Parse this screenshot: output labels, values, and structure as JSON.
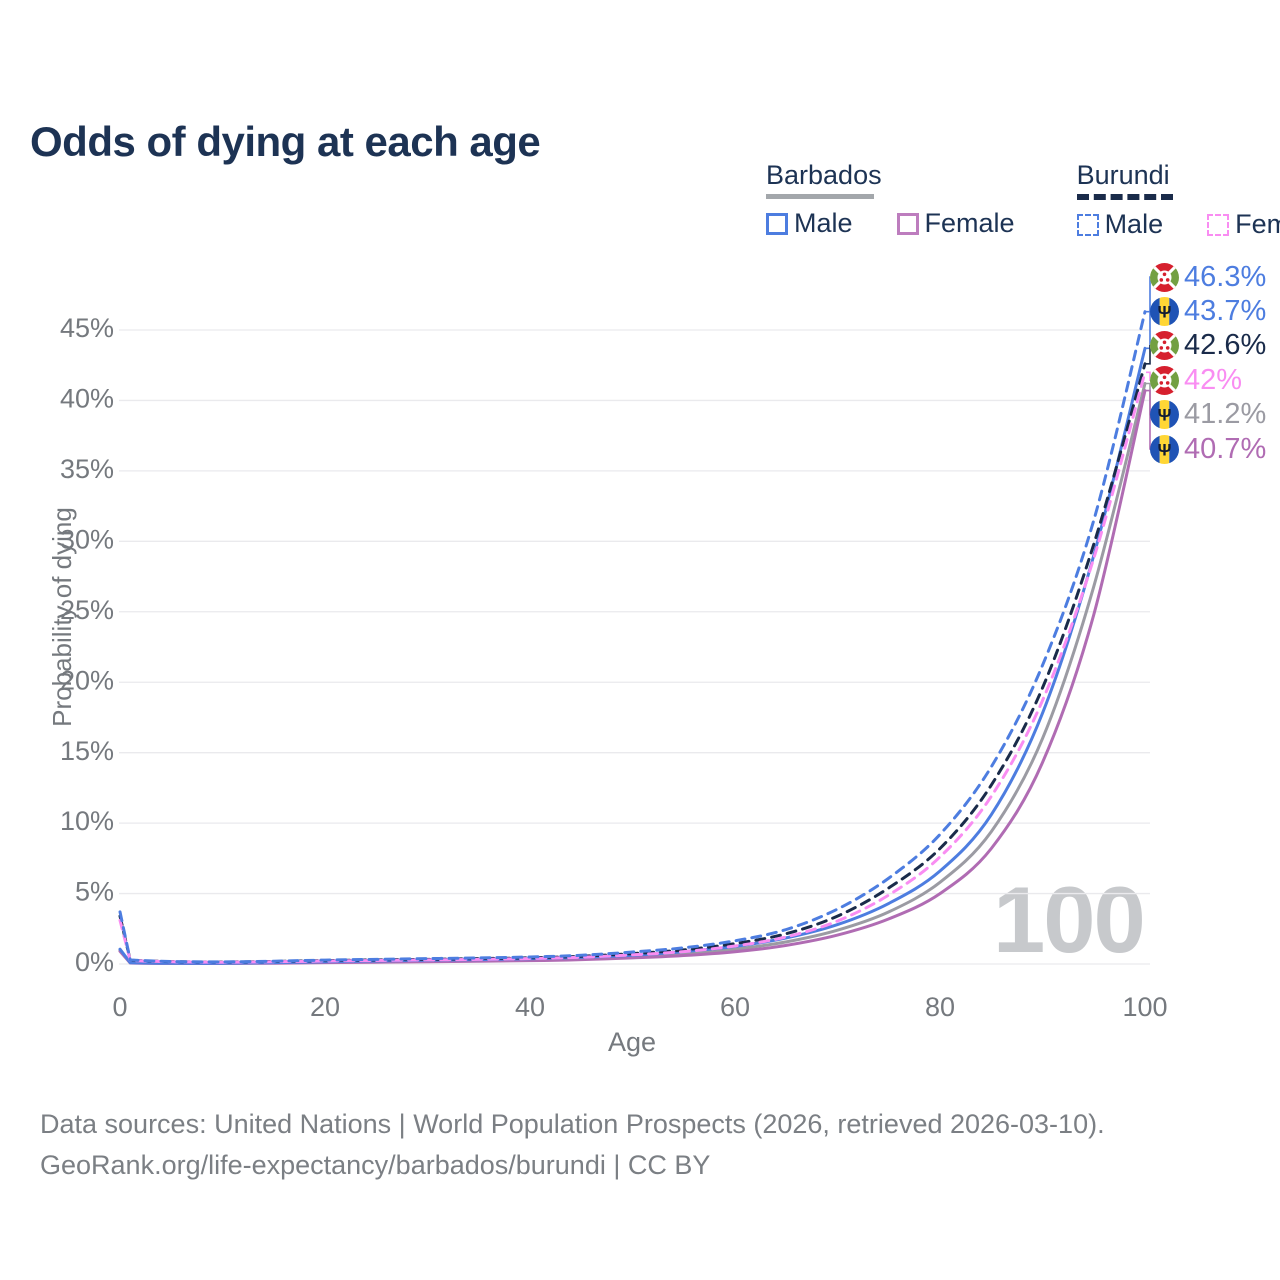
{
  "title": "Odds of dying at each age",
  "legend": {
    "groups": [
      {
        "label": "Barbados",
        "line_style": "solid",
        "swatch_color": "#a3a7ab",
        "items": [
          {
            "label": "Male",
            "color": "#4d7de0"
          },
          {
            "label": "Female",
            "color": "#bd7dbe"
          }
        ]
      },
      {
        "label": "Burundi",
        "line_style": "dashed",
        "swatch_color": "#1a2b4a",
        "items": [
          {
            "label": "Male",
            "color": "#4d7de0"
          },
          {
            "label": "Female",
            "color": "#f98df2"
          }
        ]
      }
    ]
  },
  "watermark": "100",
  "footer": {
    "line1": "Data sources: United Nations | World Population Prospects (2026, retrieved 2026-03-10).",
    "line2": "GeoRank.org/life-expectancy/barbados/burundi | CC BY"
  },
  "chart_data": {
    "type": "line",
    "title": "Odds of dying at each age",
    "xlabel": "Age",
    "ylabel": "Probability of dying",
    "xlim": [
      0,
      100
    ],
    "ylim": [
      0,
      47
    ],
    "grid": true,
    "legend_position": "top-right",
    "xticks": {
      "values": [
        0,
        20,
        40,
        60,
        80,
        100
      ],
      "labels": [
        "0",
        "20",
        "40",
        "60",
        "80",
        "100"
      ]
    },
    "yticks": {
      "values": [
        0,
        5,
        10,
        15,
        20,
        25,
        30,
        35,
        40,
        45
      ],
      "labels": [
        "0%",
        "5%",
        "10%",
        "15%",
        "20%",
        "25%",
        "30%",
        "35%",
        "40%",
        "45%"
      ]
    },
    "x": [
      0,
      1,
      5,
      10,
      15,
      20,
      25,
      30,
      35,
      40,
      45,
      50,
      55,
      60,
      65,
      70,
      75,
      80,
      85,
      90,
      95,
      100
    ],
    "series": [
      {
        "name": "Burundi Male",
        "country": "Burundi",
        "sex": "Male",
        "color": "#4d7de0",
        "dash": true,
        "end_label": "46.3%",
        "flag": "burundi",
        "values": [
          3.7,
          0.28,
          0.18,
          0.15,
          0.2,
          0.28,
          0.33,
          0.38,
          0.43,
          0.5,
          0.62,
          0.85,
          1.15,
          1.65,
          2.45,
          3.9,
          6.1,
          9.2,
          14.0,
          21.2,
          31.5,
          46.3
        ]
      },
      {
        "name": "Barbados Male",
        "country": "Barbados",
        "sex": "Male",
        "color": "#4d7de0",
        "dash": false,
        "end_label": "43.7%",
        "flag": "barbados",
        "values": [
          1.05,
          0.09,
          0.05,
          0.05,
          0.1,
          0.16,
          0.21,
          0.26,
          0.31,
          0.37,
          0.47,
          0.62,
          0.88,
          1.25,
          1.85,
          2.8,
          4.3,
          6.6,
          10.6,
          17.8,
          29.0,
          43.7
        ]
      },
      {
        "name": "Burundi Both sexes",
        "country": "Burundi",
        "sex": "Both",
        "color": "#1a2b4a",
        "dash": true,
        "end_label": "42.6%",
        "flag": "burundi",
        "values": [
          3.4,
          0.26,
          0.17,
          0.14,
          0.18,
          0.24,
          0.29,
          0.33,
          0.38,
          0.44,
          0.55,
          0.74,
          1.0,
          1.45,
          2.15,
          3.4,
          5.4,
          8.2,
          12.7,
          19.6,
          29.8,
          42.6
        ]
      },
      {
        "name": "Burundi Female",
        "country": "Burundi",
        "sex": "Female",
        "color": "#f98df2",
        "dash": true,
        "end_label": "42%",
        "flag": "burundi",
        "values": [
          3.1,
          0.24,
          0.16,
          0.13,
          0.16,
          0.21,
          0.25,
          0.29,
          0.33,
          0.39,
          0.48,
          0.65,
          0.88,
          1.28,
          1.92,
          3.05,
          4.9,
          7.6,
          11.9,
          18.7,
          28.8,
          42.0
        ]
      },
      {
        "name": "Barbados Both sexes",
        "country": "Barbados",
        "sex": "Both",
        "color": "#9b9ba3",
        "dash": false,
        "end_label": "41.2%",
        "flag": "barbados",
        "values": [
          0.97,
          0.08,
          0.05,
          0.04,
          0.08,
          0.13,
          0.17,
          0.21,
          0.25,
          0.3,
          0.38,
          0.52,
          0.73,
          1.05,
          1.57,
          2.4,
          3.7,
          5.8,
          9.4,
          16.0,
          26.8,
          41.2
        ]
      },
      {
        "name": "Barbados Female",
        "country": "Barbados",
        "sex": "Female",
        "color": "#b06cb3",
        "dash": false,
        "end_label": "40.7%",
        "flag": "barbados",
        "values": [
          0.9,
          0.07,
          0.04,
          0.04,
          0.06,
          0.1,
          0.13,
          0.16,
          0.2,
          0.24,
          0.31,
          0.43,
          0.6,
          0.87,
          1.32,
          2.05,
          3.2,
          5.0,
          8.2,
          14.3,
          24.8,
          40.7
        ]
      }
    ]
  }
}
